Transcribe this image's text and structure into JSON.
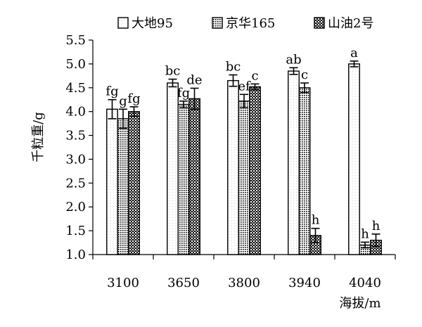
{
  "chart_data": {
    "type": "bar",
    "title": "",
    "xlabel": "海拔/m",
    "ylabel": "千粒重/g",
    "categories": [
      "3100",
      "3650",
      "3800",
      "3940",
      "4040"
    ],
    "ylim": [
      1.0,
      5.5
    ],
    "yticks": [
      "1.0",
      "1.5",
      "2.0",
      "2.5",
      "3.0",
      "3.5",
      "4.0",
      "4.5",
      "5.0",
      "5.5"
    ],
    "legend_position": "top",
    "grid": false,
    "series": [
      {
        "name": "大地95",
        "pattern": "plain",
        "values": [
          4.05,
          4.6,
          4.65,
          4.85,
          5.0
        ],
        "errors": [
          0.2,
          0.08,
          0.12,
          0.07,
          0.06
        ],
        "labels": [
          "fg",
          "bc",
          "bc",
          "ab",
          "a"
        ]
      },
      {
        "name": "京华165",
        "pattern": "dots",
        "values": [
          3.85,
          4.15,
          4.22,
          4.5,
          1.2
        ],
        "errors": [
          0.2,
          0.07,
          0.14,
          0.1,
          0.06
        ],
        "labels": [
          "g",
          "fg",
          "ef",
          "c",
          "h"
        ]
      },
      {
        "name": "山油2号",
        "pattern": "checker",
        "values": [
          4.0,
          4.27,
          4.52,
          1.4,
          1.3
        ],
        "errors": [
          0.1,
          0.22,
          0.06,
          0.15,
          0.13
        ],
        "labels": [
          "fg",
          "de",
          "c",
          "h",
          "h"
        ]
      }
    ]
  }
}
